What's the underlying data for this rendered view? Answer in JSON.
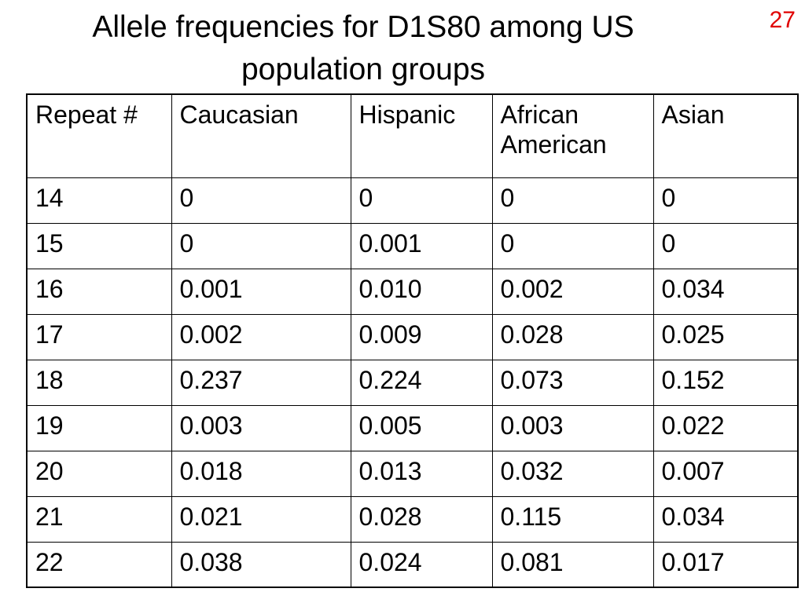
{
  "title": {
    "line1": "Allele frequencies for D1S80 among US",
    "line2": "population groups"
  },
  "slide_number": "27",
  "slide_number_color": "#e00000",
  "table": {
    "headers": [
      [
        "Repeat #"
      ],
      [
        "Caucasian"
      ],
      [
        "Hispanic"
      ],
      [
        "African",
        "American"
      ],
      [
        "Asian"
      ]
    ],
    "rows": [
      [
        "14",
        "0",
        "0",
        "0",
        "0"
      ],
      [
        "15",
        "0",
        "0.001",
        "0",
        "0"
      ],
      [
        "16",
        "0.001",
        "0.010",
        "0.002",
        "0.034"
      ],
      [
        "17",
        "0.002",
        "0.009",
        "0.028",
        "0.025"
      ],
      [
        "18",
        "0.237",
        "0.224",
        "0.073",
        "0.152"
      ],
      [
        "19",
        "0.003",
        "0.005",
        "0.003",
        "0.022"
      ],
      [
        "20",
        "0.018",
        "0.013",
        "0.032",
        "0.007"
      ],
      [
        "21",
        "0.021",
        "0.028",
        "0.115",
        "0.034"
      ],
      [
        "22",
        "0.038",
        "0.024",
        "0.081",
        "0.017"
      ]
    ]
  }
}
